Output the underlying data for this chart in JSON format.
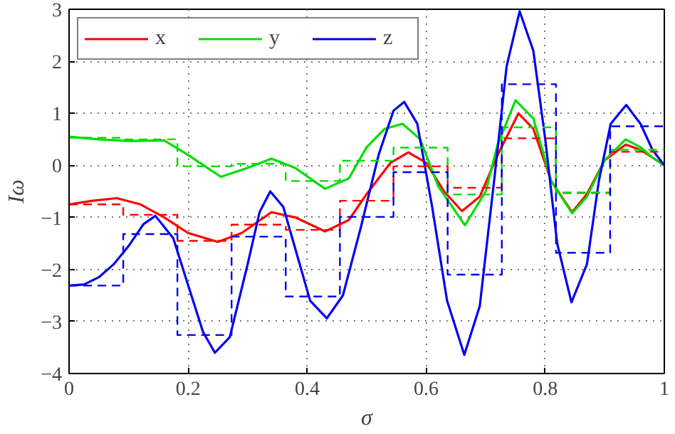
{
  "chart_data": {
    "type": "line",
    "xlabel": "σ",
    "ylabel": "Iω",
    "xlim": [
      0,
      1
    ],
    "ylim": [
      -4,
      3
    ],
    "xticks": [
      0,
      0.2,
      0.4,
      0.6,
      0.8,
      1
    ],
    "yticks": [
      -4,
      -3,
      -2,
      -1,
      0,
      1,
      2,
      3
    ],
    "grid": true,
    "legend": "top left",
    "line_style": "solid",
    "marker": "none",
    "series": [
      {
        "name": "x",
        "color": "#ff0000",
        "x": [
          0,
          0.04,
          0.08,
          0.12,
          0.16,
          0.2,
          0.25,
          0.29,
          0.34,
          0.38,
          0.43,
          0.47,
          0.5,
          0.54,
          0.57,
          0.6,
          0.63,
          0.66,
          0.69,
          0.72,
          0.755,
          0.78,
          0.81,
          0.845,
          0.87,
          0.9,
          0.935,
          0.96,
          0.98,
          1
        ],
        "values": [
          -0.75,
          -0.68,
          -0.63,
          -0.75,
          -1.0,
          -1.3,
          -1.47,
          -1.3,
          -0.9,
          -1.0,
          -1.27,
          -1.05,
          -0.55,
          0.05,
          0.25,
          0.05,
          -0.5,
          -0.88,
          -0.6,
          0.2,
          1.0,
          0.7,
          -0.3,
          -0.9,
          -0.55,
          0.1,
          0.4,
          0.3,
          0.15,
          0
        ]
      },
      {
        "name": "y",
        "color": "#00dd00",
        "x": [
          0,
          0.05,
          0.1,
          0.16,
          0.2,
          0.255,
          0.3,
          0.34,
          0.38,
          0.43,
          0.47,
          0.5,
          0.53,
          0.56,
          0.59,
          0.62,
          0.665,
          0.7,
          0.72,
          0.75,
          0.78,
          0.81,
          0.845,
          0.87,
          0.9,
          0.935,
          0.96,
          0.98,
          1
        ],
        "values": [
          0.55,
          0.5,
          0.47,
          0.48,
          0.2,
          -0.22,
          -0.05,
          0.13,
          -0.05,
          -0.45,
          -0.25,
          0.35,
          0.7,
          0.8,
          0.5,
          -0.4,
          -1.15,
          -0.5,
          0.4,
          1.25,
          0.9,
          -0.3,
          -0.92,
          -0.6,
          0.1,
          0.5,
          0.35,
          0.15,
          0
        ]
      },
      {
        "name": "z",
        "color": "#0000ee",
        "x": [
          0,
          0.025,
          0.05,
          0.075,
          0.1,
          0.125,
          0.145,
          0.175,
          0.2,
          0.225,
          0.245,
          0.27,
          0.3,
          0.32,
          0.338,
          0.36,
          0.38,
          0.405,
          0.433,
          0.46,
          0.49,
          0.52,
          0.545,
          0.563,
          0.585,
          0.61,
          0.635,
          0.664,
          0.69,
          0.715,
          0.735,
          0.757,
          0.78,
          0.8,
          0.82,
          0.844,
          0.87,
          0.89,
          0.91,
          0.936,
          0.96,
          0.98,
          1
        ],
        "values": [
          -2.31,
          -2.29,
          -2.15,
          -1.9,
          -1.55,
          -1.13,
          -0.97,
          -1.4,
          -2.3,
          -3.2,
          -3.6,
          -3.3,
          -1.9,
          -0.9,
          -0.5,
          -0.8,
          -1.6,
          -2.6,
          -2.94,
          -2.5,
          -1.2,
          0.2,
          1.05,
          1.22,
          0.8,
          -0.8,
          -2.6,
          -3.64,
          -2.7,
          -0.2,
          1.9,
          2.96,
          2.2,
          0.5,
          -1.5,
          -2.63,
          -1.9,
          -0.3,
          0.8,
          1.16,
          0.8,
          0.3,
          0
        ]
      },
      {
        "type": "step",
        "line_style": "dashed",
        "color": "#ff0000",
        "x": [
          0,
          0.091,
          0.182,
          0.273,
          0.364,
          0.455,
          0.545,
          0.636,
          0.727,
          0.818,
          0.909,
          1
        ],
        "values": [
          -0.75,
          -0.95,
          -1.45,
          -1.14,
          -1.24,
          -0.68,
          -0.02,
          -0.43,
          0.52,
          -0.53,
          0.26,
          0.26
        ]
      },
      {
        "type": "step",
        "line_style": "dashed",
        "color": "#00dd00",
        "x": [
          0,
          0.091,
          0.182,
          0.273,
          0.364,
          0.455,
          0.545,
          0.636,
          0.727,
          0.818,
          0.909,
          1
        ],
        "values": [
          0.53,
          0.5,
          -0.02,
          0.03,
          -0.3,
          0.09,
          0.34,
          -0.56,
          0.73,
          -0.52,
          0.3,
          0.3
        ]
      },
      {
        "type": "step",
        "line_style": "dashed",
        "color": "#0000ee",
        "x": [
          0,
          0.091,
          0.182,
          0.273,
          0.364,
          0.455,
          0.545,
          0.636,
          0.727,
          0.818,
          0.909,
          1
        ],
        "values": [
          -2.31,
          -1.32,
          -3.26,
          -1.37,
          -2.52,
          -0.99,
          -0.13,
          -2.1,
          1.56,
          -1.68,
          0.75,
          0.75
        ]
      }
    ]
  }
}
